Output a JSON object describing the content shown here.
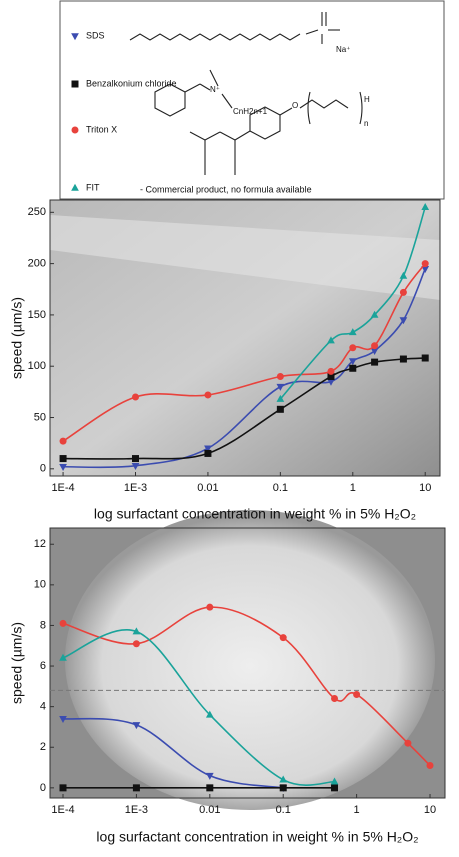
{
  "legend": {
    "note": "- Commercial product, no formula available",
    "structure_labels": [
      "Na⁺",
      "N⁺",
      "CnH2n+1",
      "O",
      "H",
      "n"
    ]
  },
  "chart_data": [
    {
      "type": "line",
      "xlabel": "log surfactant concentration in weight % in 5% H₂O₂",
      "ylabel": "speed (µm/s)",
      "log_x": true,
      "x": [
        0.0001,
        0.001,
        0.01,
        0.1,
        0.5,
        1,
        2,
        5,
        10
      ],
      "xlim": [
        6.6e-05,
        16
      ],
      "xticks": [
        {
          "value": 0.0001,
          "label": "1E-4"
        },
        {
          "value": 0.001,
          "label": "1E-3"
        },
        0.01,
        0.1,
        1,
        10
      ],
      "ylim": [
        -7,
        262
      ],
      "yticks": [
        0,
        50,
        100,
        150,
        200,
        250
      ],
      "series": [
        {
          "name": "SDS",
          "color": "#3b4cb0",
          "marker": "triangle-down",
          "values": [
            2,
            3,
            20,
            80,
            85,
            105,
            115,
            145,
            195
          ]
        },
        {
          "name": "Benzalkonium chloride",
          "color": "#111111",
          "marker": "square",
          "values": [
            10,
            10,
            15,
            58,
            90,
            98,
            104,
            107,
            108
          ]
        },
        {
          "name": "Triton X",
          "color": "#e8423c",
          "marker": "circle",
          "values": [
            27,
            70,
            72,
            90,
            95,
            118,
            120,
            172,
            200
          ]
        },
        {
          "name": "FIT",
          "color": "#1aa39a",
          "marker": "triangle-up",
          "values": [
            null,
            null,
            null,
            68,
            125,
            133,
            150,
            188,
            255
          ]
        }
      ]
    },
    {
      "type": "line",
      "xlabel": "log surfactant concentration in weight % in 5% H₂O₂",
      "ylabel": "speed (µm/s)",
      "log_x": true,
      "x": [
        0.0001,
        0.001,
        0.01,
        0.1,
        0.5,
        1,
        5,
        10
      ],
      "xlim": [
        6.65e-05,
        16
      ],
      "xticks": [
        {
          "value": 0.0001,
          "label": "1E-4"
        },
        {
          "value": 0.001,
          "label": "1E-3"
        },
        0.01,
        0.1,
        1,
        10
      ],
      "ylim": [
        -0.5,
        12.8
      ],
      "yticks": [
        0,
        2,
        4,
        6,
        8,
        10,
        12
      ],
      "reference_line": 4.8,
      "series": [
        {
          "color": "#3b4cb0",
          "marker": "triangle-down",
          "values": [
            3.4,
            3.1,
            0.6,
            0.0,
            null,
            null,
            null,
            null
          ]
        },
        {
          "color": "#111111",
          "marker": "square",
          "values": [
            0,
            0,
            0,
            0,
            0,
            null,
            null,
            null
          ]
        },
        {
          "color": "#e8423c",
          "marker": "circle",
          "values": [
            8.1,
            7.1,
            8.9,
            7.4,
            4.4,
            4.6,
            2.2,
            1.1
          ]
        },
        {
          "color": "#1aa39a",
          "marker": "triangle-up",
          "values": [
            6.4,
            7.7,
            3.6,
            0.4,
            0.3,
            null,
            null,
            null
          ]
        }
      ]
    }
  ]
}
